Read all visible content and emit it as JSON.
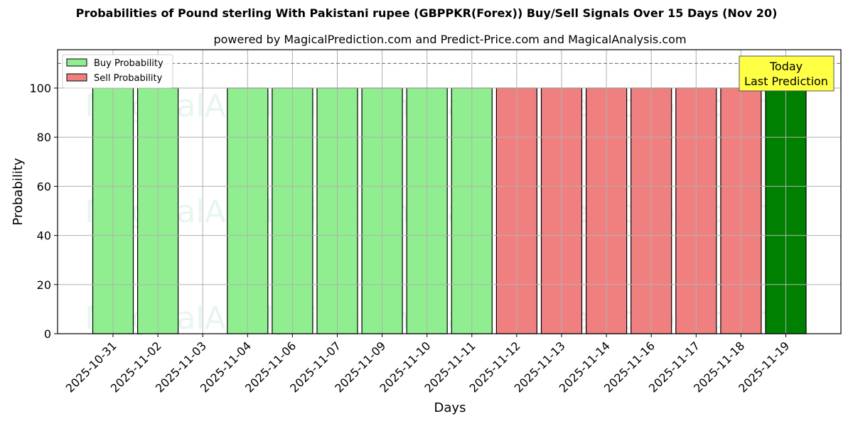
{
  "title": "Probabilities of Pound sterling With Pakistani rupee (GBPPKR(Forex)) Buy/Sell Signals Over 15 Days (Nov 20)",
  "subtitle": "powered by MagicalPrediction.com and Predict-Price.com and MagicalAnalysis.com",
  "watermarks": [
    "MagicalAnalysis.com",
    "MagicalPrediction.com"
  ],
  "annotation": {
    "line1": "Today",
    "line2": "Last Prediction",
    "bg": "#ffff44"
  },
  "legend": [
    {
      "label": "Buy Probability",
      "color": "#90ee90"
    },
    {
      "label": "Sell Probability",
      "color": "#f08080"
    }
  ],
  "colors": {
    "buy": "#90ee90",
    "sell": "#f08080",
    "today": "#008000",
    "threshold": "#808080"
  },
  "chart_data": {
    "type": "bar",
    "title": "Probabilities of Pound sterling With Pakistani rupee (GBPPKR(Forex)) Buy/Sell Signals Over 15 Days (Nov 20)",
    "subtitle": "powered by MagicalPrediction.com and Predict-Price.com and MagicalAnalysis.com",
    "xlabel": "Days",
    "ylabel": "Probability",
    "ylim": [
      0,
      115
    ],
    "yticks": [
      0,
      20,
      40,
      60,
      80,
      100
    ],
    "grid": true,
    "legend_position": "upper left",
    "threshold_line": 110,
    "categories": [
      "2025-10-31",
      "2025-11-02",
      "2025-11-03",
      "2025-11-04",
      "2025-11-06",
      "2025-11-07",
      "2025-11-09",
      "2025-11-10",
      "2025-11-11",
      "2025-11-12",
      "2025-11-13",
      "2025-11-14",
      "2025-11-16",
      "2025-11-17",
      "2025-11-18",
      "2025-11-19"
    ],
    "series": [
      {
        "name": "Buy Probability",
        "values": [
          100,
          100,
          0,
          100,
          100,
          100,
          100,
          100,
          100,
          0,
          0,
          0,
          0,
          0,
          0,
          100
        ]
      },
      {
        "name": "Sell Probability",
        "values": [
          0,
          0,
          0,
          0,
          0,
          0,
          0,
          0,
          0,
          100,
          100,
          100,
          100,
          100,
          100,
          0
        ]
      }
    ],
    "bar_types": [
      "buy",
      "buy",
      "none",
      "buy",
      "buy",
      "buy",
      "buy",
      "buy",
      "buy",
      "sell",
      "sell",
      "sell",
      "sell",
      "sell",
      "sell",
      "today"
    ],
    "annotations": [
      {
        "text": "Today\nLast Prediction",
        "x": "2025-11-19"
      }
    ]
  }
}
